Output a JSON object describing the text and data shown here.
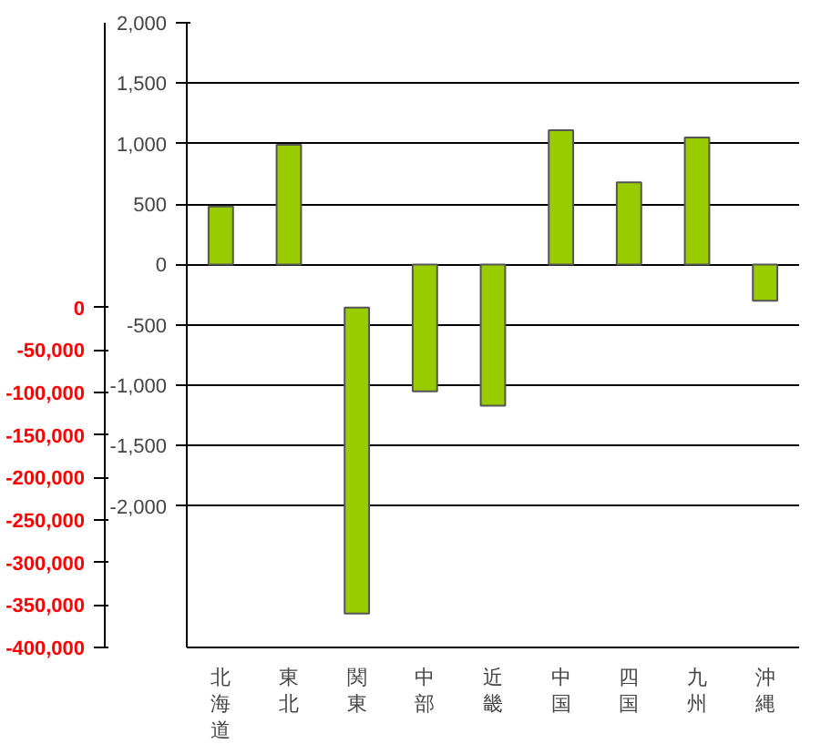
{
  "chart_data": {
    "type": "bar",
    "categories": [
      "北海道",
      "東北",
      "関東",
      "中部",
      "近畿",
      "中国",
      "四国",
      "九州",
      "沖縄"
    ],
    "series": [
      {
        "color": "#99cc00",
        "values": [
          480,
          990,
          null,
          -1050,
          -1170,
          1110,
          680,
          1050,
          -300
        ]
      },
      {
        "color": "#99cc00",
        "axis": "y2",
        "values": [
          null,
          null,
          -360000,
          null,
          null,
          null,
          null,
          null,
          null
        ]
      }
    ],
    "ylim": [
      -3170,
      2000
    ],
    "yticks": [
      {
        "value": 2000,
        "label": "2,000"
      },
      {
        "value": 1500,
        "label": "1,500"
      },
      {
        "value": 1000,
        "label": "1,000"
      },
      500,
      0,
      {
        "value": -500,
        "label": "-500"
      },
      {
        "value": -1000,
        "label": "-1,000"
      },
      {
        "value": -1500,
        "label": "-1,500"
      },
      {
        "value": -2000,
        "label": "-2,000"
      }
    ],
    "y2lim": [
      -400000,
      335000
    ],
    "y2ticks": [
      0,
      {
        "value": -50000,
        "label": "-50,000"
      },
      {
        "value": -100000,
        "label": "-100,000"
      },
      {
        "value": -150000,
        "label": "-150,000"
      },
      {
        "value": -200000,
        "label": "-200,000"
      },
      {
        "value": -250000,
        "label": "-250,000"
      },
      {
        "value": -300000,
        "label": "-300,000"
      },
      {
        "value": -350000,
        "label": "-350,000"
      },
      {
        "value": -400000,
        "label": "-400,000"
      }
    ],
    "grid": "y"
  }
}
